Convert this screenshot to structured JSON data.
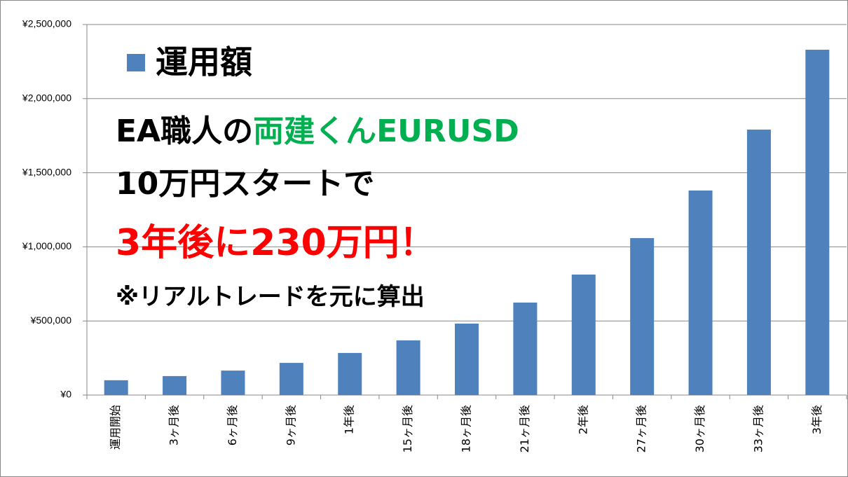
{
  "chart_data": {
    "type": "bar",
    "legend_label": "運用額",
    "categories": [
      "運用開始",
      "3ヶ月後",
      "6ヶ月後",
      "9ヶ月後",
      "1年後",
      "15ヶ月後",
      "18ヶ月後",
      "21ヶ月後",
      "2年後",
      "27ヶ月後",
      "30ヶ月後",
      "33ヶ月後",
      "3年後"
    ],
    "values": [
      100000,
      128000,
      165000,
      217000,
      284000,
      369000,
      482000,
      624000,
      813000,
      1059000,
      1380000,
      1791000,
      2330000
    ],
    "color": "#4f81bd",
    "ylim": [
      0,
      2500000
    ],
    "yticks": [
      {
        "value": 0,
        "label": "¥0"
      },
      {
        "value": 500000,
        "label": "¥500,000"
      },
      {
        "value": 1000000,
        "label": "¥1,000,000"
      },
      {
        "value": 1500000,
        "label": "¥1,500,000"
      },
      {
        "value": 2000000,
        "label": "¥2,000,000"
      },
      {
        "value": 2500000,
        "label": "¥2,500,000"
      }
    ],
    "grid": true,
    "annotations": [
      [
        {
          "text": "EA職人の",
          "color": "#000000"
        },
        {
          "text": "両建くんEURUSD",
          "color": "#00b050"
        }
      ],
      [
        {
          "text": "10万円スタートで",
          "color": "#000000"
        }
      ],
      [
        {
          "text": "3年後に230万円！",
          "color": "#ff0000"
        }
      ],
      [
        {
          "text": "※リアルトレードを元に算出",
          "color": "#000000"
        }
      ]
    ]
  }
}
